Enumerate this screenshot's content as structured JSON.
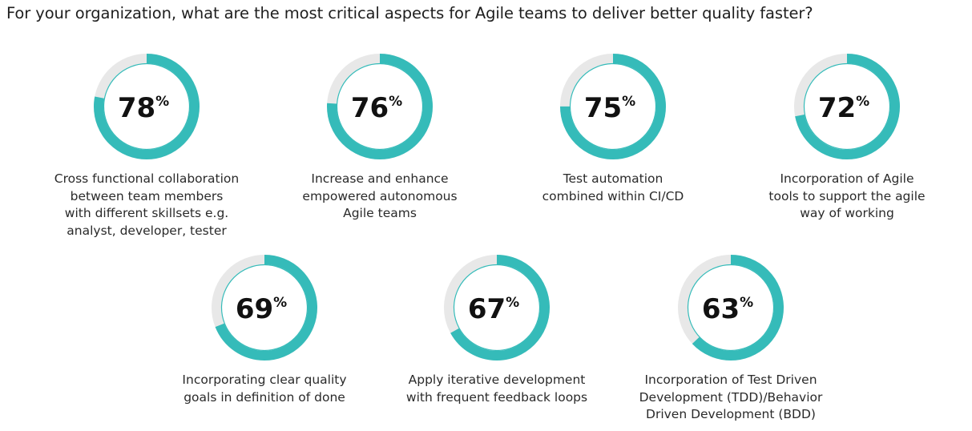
{
  "title": "For your organization, what are the most critical aspects for Agile teams to deliver better quality faster?",
  "colors": {
    "fill": "#35bbb9",
    "track": "#e8e8e8",
    "text": "#111111"
  },
  "chart_data": {
    "type": "donut",
    "unit": "%",
    "max": 100,
    "items": [
      {
        "value": 78,
        "label": "Cross functional collaboration between team members with different skillsets e.g. analyst, developer, tester",
        "lines": [
          "Cross functional collaboration",
          "between team members",
          "with different skillsets e.g.",
          "analyst, developer, tester"
        ]
      },
      {
        "value": 76,
        "label": "Increase and enhance empowered autonomous Agile teams",
        "lines": [
          "Increase and enhance",
          "empowered autonomous",
          "Agile teams"
        ]
      },
      {
        "value": 75,
        "label": "Test automation combined within CI/CD",
        "lines": [
          "Test automation",
          "combined within CI/CD"
        ]
      },
      {
        "value": 72,
        "label": "Incorporation of Agile tools to support the agile way of working",
        "lines": [
          "Incorporation of Agile",
          "tools to support the agile",
          "way of working"
        ]
      },
      {
        "value": 69,
        "label": "Incorporating clear quality goals in definition of done",
        "lines": [
          "Incorporating clear quality",
          "goals in definition of done"
        ]
      },
      {
        "value": 67,
        "label": "Apply iterative development with frequent feedback loops",
        "lines": [
          "Apply iterative development",
          "with frequent feedback loops"
        ]
      },
      {
        "value": 63,
        "label": "Incorporation of Test Driven Development (TDD)/Behavior Driven Development (BDD)",
        "lines": [
          "Incorporation of Test Driven",
          "Development (TDD)/Behavior",
          "Driven Development (BDD)"
        ]
      }
    ]
  }
}
